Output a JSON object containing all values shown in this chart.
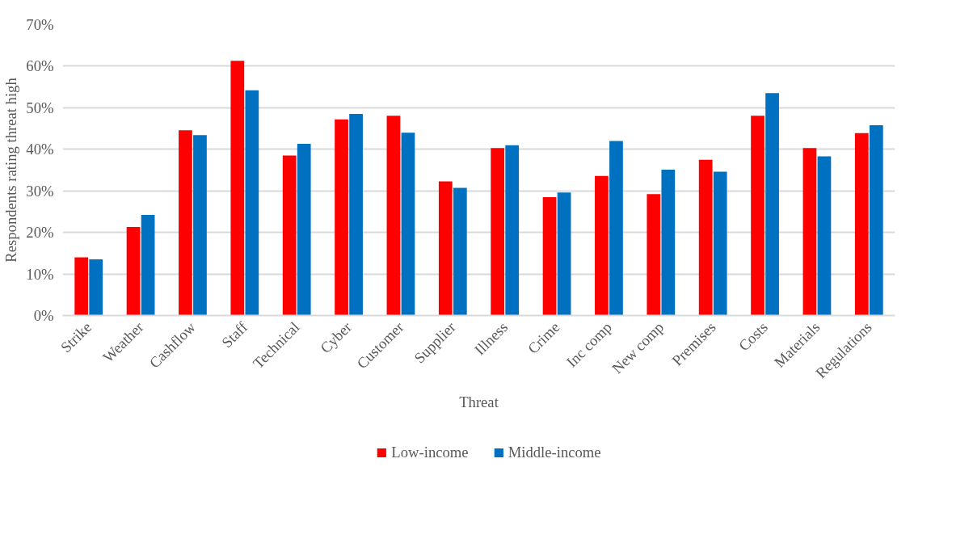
{
  "chart_data": {
    "type": "bar",
    "xlabel": "Threat",
    "ylabel": "Respondents rating threat high",
    "categories": [
      "Strike",
      "Weather",
      "Cashflow",
      "Staff",
      "Technical",
      "Cyber",
      "Customer",
      "Supplier",
      "Illness",
      "Crime",
      "Inc comp",
      "New comp",
      "Premises",
      "Costs",
      "Materials",
      "Regulations"
    ],
    "series": [
      {
        "name": "Low-income",
        "color": "#ff0000",
        "values": [
          14.0,
          21.3,
          44.6,
          61.3,
          38.5,
          47.2,
          48.1,
          32.3,
          40.3,
          28.5,
          33.6,
          29.2,
          37.5,
          48.1,
          40.3,
          43.9
        ]
      },
      {
        "name": "Middle-income",
        "color": "#0070c0",
        "values": [
          13.5,
          24.2,
          43.4,
          54.2,
          41.3,
          48.5,
          44.0,
          30.7,
          41.0,
          29.6,
          42.0,
          35.1,
          34.6,
          53.5,
          38.3,
          45.8
        ]
      }
    ],
    "ylim": [
      0,
      70
    ],
    "yticks": [
      {
        "value": 0,
        "label": "0%"
      },
      {
        "value": 10,
        "label": "10%"
      },
      {
        "value": 20,
        "label": "20%"
      },
      {
        "value": 30,
        "label": "30%"
      },
      {
        "value": 40,
        "label": "40%"
      },
      {
        "value": 50,
        "label": "50%"
      },
      {
        "value": 60,
        "label": "60%"
      },
      {
        "value": 70,
        "label": "70%"
      }
    ],
    "grid": "y",
    "legend": "bottom"
  }
}
